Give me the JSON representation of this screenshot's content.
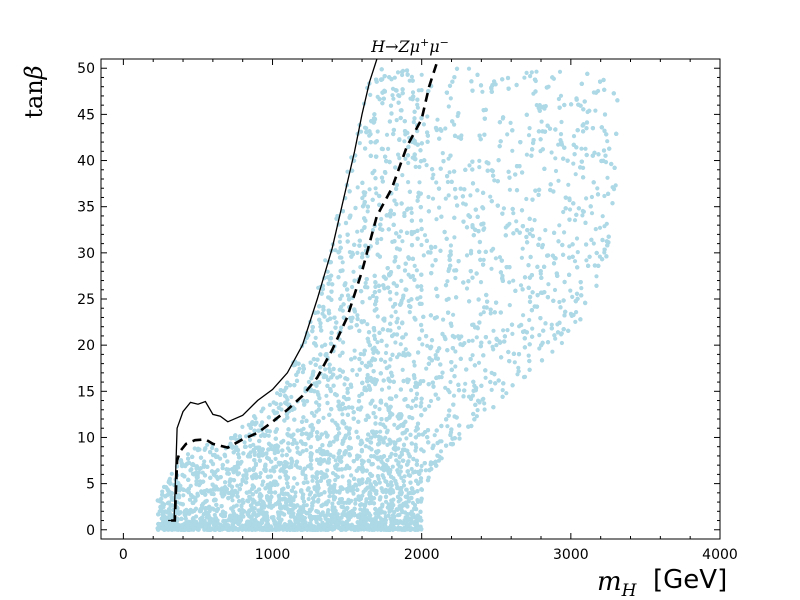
{
  "chart_data": {
    "type": "scatter",
    "title": "H→Zμ⁺μ⁻",
    "title_parts": {
      "lead": "H",
      "arrow": "→",
      "z": "Z",
      "mu1": "μ",
      "sup1": "+",
      "mu2": "μ",
      "sup2": "−"
    },
    "xlabel": "m",
    "xlabel_sub": "H",
    "xlabel_unit": "[GeV]",
    "ylabel_fn": "tan",
    "ylabel_sym": "β",
    "xlim": [
      -150,
      4000
    ],
    "ylim": [
      -1,
      51
    ],
    "xticks": [
      0,
      1000,
      2000,
      3000,
      4000
    ],
    "yticks": [
      0,
      5,
      10,
      15,
      20,
      25,
      30,
      35,
      40,
      45,
      50
    ],
    "grid": false,
    "point_color": "#add8e6",
    "scatter_region": {
      "description_points": "dense scan of allowed parameter points",
      "lower_x_min": 230,
      "upper_edge": [
        [
          300,
          6
        ],
        [
          450,
          9
        ],
        [
          700,
          10
        ],
        [
          1000,
          14
        ],
        [
          1200,
          20
        ],
        [
          1400,
          32
        ],
        [
          1550,
          42
        ],
        [
          1650,
          50
        ],
        [
          2000,
          50
        ],
        [
          2500,
          50
        ],
        [
          2800,
          50
        ],
        [
          3200,
          50
        ],
        [
          3350,
          46
        ]
      ],
      "right_edge": [
        [
          2000,
          2
        ],
        [
          2050,
          5
        ],
        [
          2200,
          9
        ],
        [
          2400,
          12
        ],
        [
          2600,
          15
        ],
        [
          2800,
          18
        ],
        [
          3000,
          21
        ],
        [
          3150,
          25
        ],
        [
          3250,
          29
        ],
        [
          3350,
          45
        ]
      ],
      "count": 9000
    },
    "series": [
      {
        "style": "solid",
        "color": "#000000",
        "x": [
          300,
          340,
          360,
          400,
          450,
          500,
          550,
          600,
          650,
          700,
          800,
          900,
          1000,
          1100,
          1200,
          1300,
          1400,
          1500,
          1550,
          1600,
          1650,
          1700
        ],
        "y": [
          1,
          1,
          11,
          12.8,
          13.8,
          13.6,
          13.9,
          12.5,
          12.3,
          11.7,
          12.4,
          14,
          15.2,
          17,
          20,
          25,
          30.5,
          37.5,
          41,
          45,
          48.5,
          51
        ]
      },
      {
        "style": "dashed",
        "color": "#000000",
        "x": [
          320,
          345,
          360,
          380,
          420,
          480,
          550,
          600,
          700,
          800,
          900,
          1000,
          1100,
          1200,
          1300,
          1400,
          1500,
          1600,
          1700,
          1800,
          1900,
          2000,
          2050,
          2100
        ],
        "y": [
          1,
          1,
          7.5,
          8.5,
          9.3,
          9.7,
          9.8,
          9.3,
          8.9,
          9.8,
          10.5,
          11.7,
          13,
          14.5,
          16.5,
          19.5,
          23,
          28,
          34,
          37,
          41.5,
          44.5,
          48,
          50.5
        ]
      }
    ]
  }
}
